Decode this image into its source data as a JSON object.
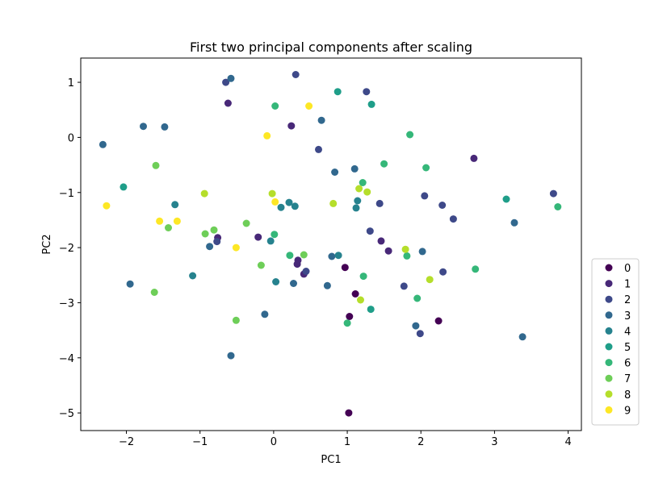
{
  "chart_data": {
    "type": "scatter",
    "title": "First two principal components after scaling",
    "xlabel": "PC1",
    "ylabel": "PC2",
    "xlim": [
      -2.62,
      4.18
    ],
    "ylim": [
      -5.32,
      1.44
    ],
    "xticks": [
      -2,
      -1,
      0,
      1,
      2,
      3,
      4
    ],
    "xtick_labels": [
      "−2",
      "−1",
      "0",
      "1",
      "2",
      "3",
      "4"
    ],
    "yticks": [
      1,
      0,
      -1,
      -2,
      -3,
      -4,
      -5
    ],
    "ytick_labels": [
      "1",
      "0",
      "−1",
      "−2",
      "−3",
      "−4",
      "−5"
    ],
    "grid": false,
    "legend_position": "outside-bottom-right",
    "colormap": "viridis",
    "series": [
      {
        "name": "0",
        "color": "#440154",
        "points": [
          [
            0.97,
            -2.36
          ],
          [
            1.11,
            -2.84
          ],
          [
            1.03,
            -3.25
          ],
          [
            2.24,
            -3.33
          ],
          [
            1.02,
            -5.0
          ]
        ]
      },
      {
        "name": "1",
        "color": "#482878",
        "points": [
          [
            -0.62,
            0.62
          ],
          [
            0.24,
            0.21
          ],
          [
            -0.21,
            -1.81
          ],
          [
            -0.76,
            -1.82
          ],
          [
            0.32,
            -2.3
          ],
          [
            0.33,
            -2.23
          ],
          [
            0.41,
            -2.48
          ],
          [
            1.46,
            -1.88
          ],
          [
            1.56,
            -2.06
          ],
          [
            2.72,
            -0.38
          ]
        ]
      },
      {
        "name": "2",
        "color": "#3e4989",
        "points": [
          [
            -0.65,
            1.0
          ],
          [
            0.3,
            1.14
          ],
          [
            1.26,
            0.83
          ],
          [
            0.61,
            -0.22
          ],
          [
            1.44,
            -1.2
          ],
          [
            2.05,
            -1.06
          ],
          [
            2.29,
            -1.23
          ],
          [
            2.44,
            -1.48
          ],
          [
            3.8,
            -1.02
          ],
          [
            1.31,
            -1.7
          ],
          [
            -0.77,
            -1.89
          ],
          [
            0.44,
            -2.43
          ],
          [
            2.3,
            -2.44
          ],
          [
            1.77,
            -2.7
          ],
          [
            1.99,
            -3.56
          ]
        ]
      },
      {
        "name": "3",
        "color": "#31688e",
        "points": [
          [
            -0.58,
            1.07
          ],
          [
            -1.77,
            0.2
          ],
          [
            -1.48,
            0.19
          ],
          [
            0.65,
            0.31
          ],
          [
            -2.32,
            -0.13
          ],
          [
            0.83,
            -0.63
          ],
          [
            1.1,
            -0.57
          ],
          [
            3.27,
            -1.55
          ],
          [
            -0.87,
            -1.98
          ],
          [
            2.02,
            -2.07
          ],
          [
            0.79,
            -2.16
          ],
          [
            0.27,
            -2.65
          ],
          [
            0.73,
            -2.69
          ],
          [
            -1.95,
            -2.66
          ],
          [
            -0.12,
            -3.21
          ],
          [
            1.93,
            -3.42
          ],
          [
            3.38,
            -3.62
          ],
          [
            -0.58,
            -3.96
          ]
        ]
      },
      {
        "name": "4",
        "color": "#26828e",
        "points": [
          [
            -1.34,
            -1.22
          ],
          [
            0.1,
            -1.27
          ],
          [
            0.21,
            -1.18
          ],
          [
            0.29,
            -1.25
          ],
          [
            1.14,
            -1.15
          ],
          [
            1.12,
            -1.28
          ],
          [
            -0.04,
            -1.88
          ],
          [
            0.88,
            -2.14
          ],
          [
            0.03,
            -2.62
          ],
          [
            -1.1,
            -2.51
          ]
        ]
      },
      {
        "name": "5",
        "color": "#1f9e89",
        "points": [
          [
            0.87,
            0.83
          ],
          [
            1.33,
            0.6
          ],
          [
            -2.04,
            -0.9
          ],
          [
            3.16,
            -1.12
          ],
          [
            1.32,
            -3.12
          ]
        ]
      },
      {
        "name": "6",
        "color": "#35b779",
        "points": [
          [
            0.02,
            0.57
          ],
          [
            1.85,
            0.05
          ],
          [
            1.5,
            -0.48
          ],
          [
            2.07,
            -0.55
          ],
          [
            1.21,
            -0.82
          ],
          [
            3.86,
            -1.26
          ],
          [
            0.01,
            -1.76
          ],
          [
            0.22,
            -2.14
          ],
          [
            1.81,
            -2.15
          ],
          [
            1.22,
            -2.52
          ],
          [
            2.74,
            -2.39
          ],
          [
            1.95,
            -2.92
          ],
          [
            1.0,
            -3.37
          ]
        ]
      },
      {
        "name": "7",
        "color": "#6ece58",
        "points": [
          [
            -1.6,
            -0.51
          ],
          [
            -0.37,
            -1.56
          ],
          [
            -0.81,
            -1.68
          ],
          [
            -1.43,
            -1.64
          ],
          [
            -0.93,
            -1.75
          ],
          [
            0.41,
            -2.13
          ],
          [
            -0.17,
            -2.32
          ],
          [
            -1.62,
            -2.81
          ],
          [
            -0.51,
            -3.32
          ]
        ]
      },
      {
        "name": "8",
        "color": "#b5de2b",
        "points": [
          [
            1.16,
            -0.93
          ],
          [
            1.27,
            -0.99
          ],
          [
            -0.94,
            -1.02
          ],
          [
            -0.02,
            -1.02
          ],
          [
            0.81,
            -1.2
          ],
          [
            1.79,
            -2.03
          ],
          [
            2.12,
            -2.58
          ],
          [
            1.18,
            -2.95
          ]
        ]
      },
      {
        "name": "9",
        "color": "#fde725",
        "points": [
          [
            0.48,
            0.57
          ],
          [
            -0.09,
            0.03
          ],
          [
            -2.27,
            -1.24
          ],
          [
            0.02,
            -1.17
          ],
          [
            -1.55,
            -1.52
          ],
          [
            -1.31,
            -1.52
          ],
          [
            -0.51,
            -2.0
          ]
        ]
      }
    ]
  }
}
